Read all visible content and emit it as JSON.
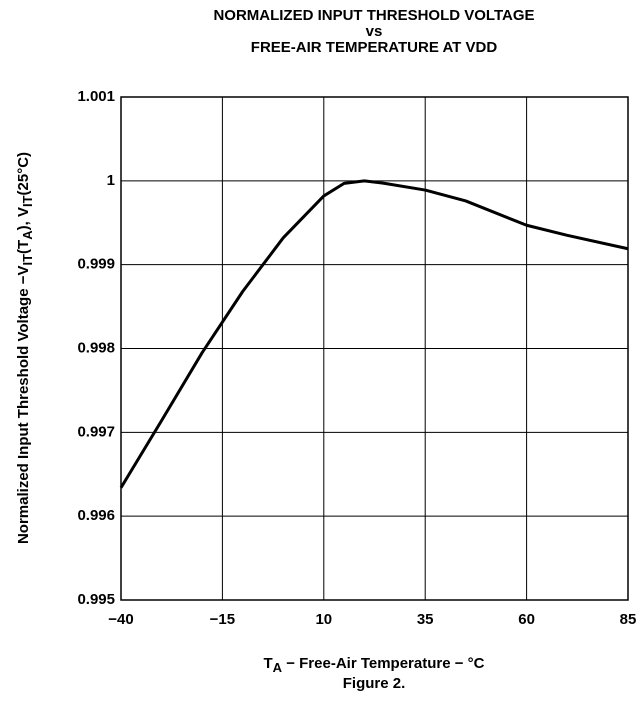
{
  "chart_data": {
    "type": "line",
    "title": [
      "NORMALIZED INPUT THRESHOLD VOLTAGE",
      "vs",
      "FREE-AIR TEMPERATURE AT VDD"
    ],
    "y_label": [
      "Normalized Input Threshold Voltage −V",
      "IT",
      "(T",
      "A",
      "), V",
      "IT",
      "(25°C)"
    ],
    "x_label": [
      "T",
      "A",
      " − Free-Air Temperature − °C"
    ],
    "caption": "Figure 2.",
    "x": [
      -40,
      -30,
      -20,
      -10,
      0,
      10,
      15,
      20,
      25,
      35,
      45,
      60,
      70,
      85
    ],
    "series": [
      {
        "color": "#000000",
        "values": [
          0.99634,
          0.99714,
          0.99795,
          0.99868,
          0.99932,
          0.99982,
          0.99997,
          1.0,
          0.99997,
          0.99989,
          0.99976,
          0.99947,
          0.99935,
          0.99919
        ]
      }
    ],
    "xlim": [
      -40,
      85
    ],
    "xticks": [
      {
        "value": -40,
        "label": "−40"
      },
      {
        "value": -15,
        "label": "−15"
      },
      10,
      35,
      60,
      85
    ],
    "ylim": [
      0.995,
      1.001
    ],
    "yticks": [
      0.995,
      0.996,
      0.997,
      0.998,
      0.999,
      1,
      1.001
    ],
    "grid": true
  }
}
